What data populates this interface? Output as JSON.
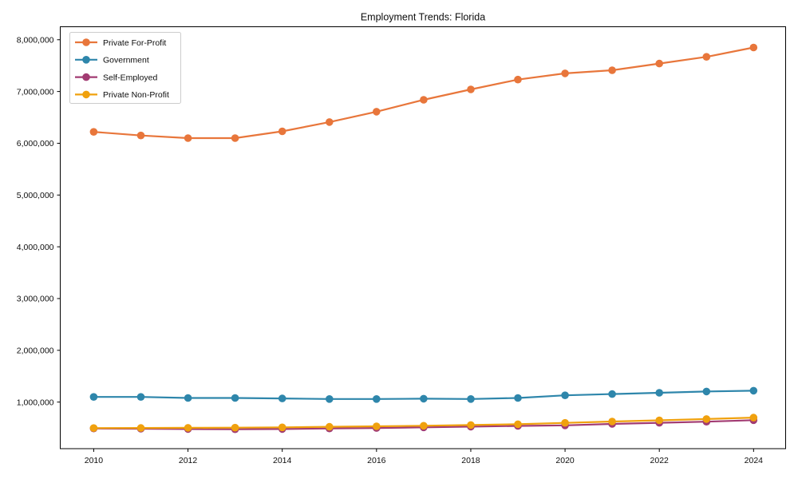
{
  "figure": {
    "background": "#ffffff",
    "frame_color": "#000000"
  },
  "chart_data": {
    "type": "line",
    "title": "Employment Trends: Florida",
    "xlabel": "",
    "ylabel": "",
    "grid": false,
    "legend_position": "upper left",
    "xlim": [
      2009.29,
      2024.68
    ],
    "ylim": [
      100000,
      8251000
    ],
    "x": [
      2010,
      2011,
      2012,
      2013,
      2014,
      2015,
      2016,
      2017,
      2018,
      2019,
      2020,
      2021,
      2022,
      2023,
      2024
    ],
    "x_ticks": [
      {
        "value": 2010,
        "label": "2010"
      },
      {
        "value": 2012,
        "label": "2012"
      },
      {
        "value": 2014,
        "label": "2014"
      },
      {
        "value": 2016,
        "label": "2016"
      },
      {
        "value": 2018,
        "label": "2018"
      },
      {
        "value": 2020,
        "label": "2020"
      },
      {
        "value": 2022,
        "label": "2022"
      },
      {
        "value": 2024,
        "label": "2024"
      }
    ],
    "y_ticks": [
      {
        "value": 1000000,
        "label": "1,000,000"
      },
      {
        "value": 2000000,
        "label": "2,000,000"
      },
      {
        "value": 3000000,
        "label": "3,000,000"
      },
      {
        "value": 4000000,
        "label": "4,000,000"
      },
      {
        "value": 5000000,
        "label": "5,000,000"
      },
      {
        "value": 6000000,
        "label": "6,000,000"
      },
      {
        "value": 7000000,
        "label": "7,000,000"
      },
      {
        "value": 8000000,
        "label": "8,000,000"
      }
    ],
    "series": [
      {
        "name": "Private For-Profit",
        "color": "#E8763B",
        "values": [
          6220000,
          6150000,
          6100000,
          6100000,
          6230000,
          6410000,
          6610000,
          6840000,
          7040000,
          7230000,
          7350000,
          7410000,
          7540000,
          7670000,
          7850000
        ]
      },
      {
        "name": "Government",
        "color": "#2E86AB",
        "values": [
          1100000,
          1100000,
          1080000,
          1080000,
          1070000,
          1060000,
          1060000,
          1065000,
          1060000,
          1080000,
          1130000,
          1155000,
          1180000,
          1205000,
          1220000
        ]
      },
      {
        "name": "Self-Employed",
        "color": "#A23B72",
        "values": [
          490000,
          485000,
          480000,
          475000,
          480000,
          490000,
          500000,
          512000,
          525000,
          540000,
          550000,
          578000,
          600000,
          622000,
          650000
        ]
      },
      {
        "name": "Private Non-Profit",
        "color": "#F0A10E",
        "values": [
          498000,
          500000,
          503000,
          505000,
          512000,
          522000,
          532000,
          543000,
          557000,
          572000,
          598000,
          625000,
          648000,
          672000,
          700000
        ]
      }
    ]
  }
}
